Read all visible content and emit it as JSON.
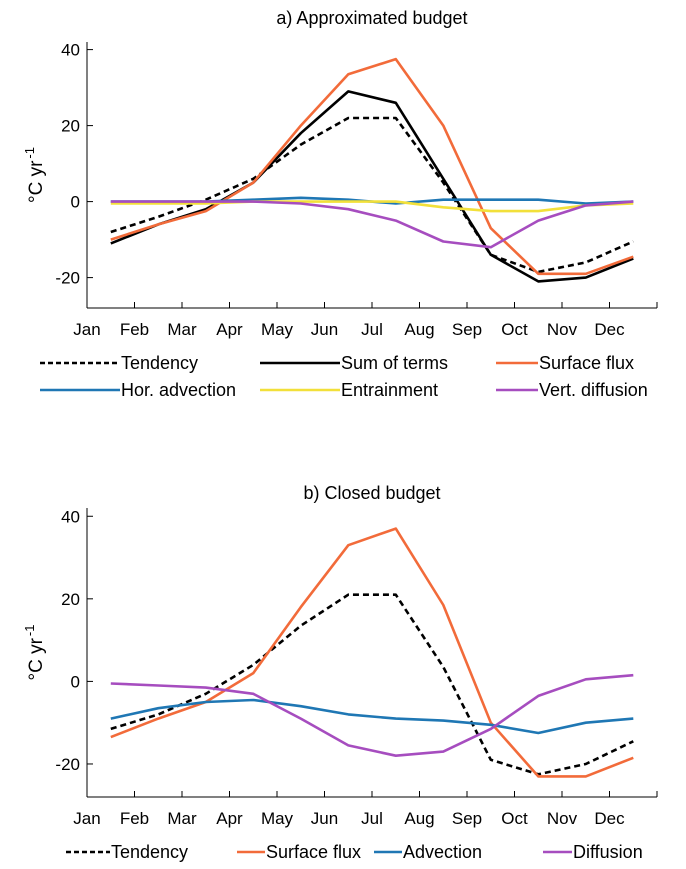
{
  "chart_data": [
    {
      "type": "line",
      "title": "a) Approximated budget",
      "ylabel_main": "°C yr",
      "ylabel_exp": "-1",
      "months": [
        "Jan",
        "Feb",
        "Mar",
        "Apr",
        "May",
        "Jun",
        "Jul",
        "Aug",
        "Sep",
        "Oct",
        "Nov",
        "Dec"
      ],
      "ylim": [
        -28,
        42
      ],
      "yticks": [
        40,
        20,
        0,
        -20
      ],
      "ytick_labels": [
        "40",
        "20",
        "0",
        "-20"
      ],
      "series": [
        {
          "name": "Tendency",
          "color": "#000000",
          "dash": true,
          "x": [
            0.5,
            1.5,
            2.5,
            3.5,
            4.5,
            5.5,
            6.5,
            7.5,
            8.5,
            9.5,
            10.5,
            11.5
          ],
          "y": [
            -8,
            -4,
            0.5,
            6,
            15,
            22,
            22,
            5,
            -14,
            -18.5,
            -16,
            -10.5
          ]
        },
        {
          "name": "Sum of terms",
          "color": "#000000",
          "dash": false,
          "x": [
            0.5,
            1.5,
            2.5,
            3.5,
            4.5,
            5.5,
            6.5,
            7.5,
            8.5,
            9.5,
            10.5,
            11.5
          ],
          "y": [
            -11,
            -6,
            -2,
            5,
            18,
            29,
            26,
            6,
            -14,
            -21,
            -20,
            -15
          ]
        },
        {
          "name": "Surface flux",
          "color": "#F26B3A",
          "dash": false,
          "x": [
            0.5,
            1.5,
            2.5,
            3.5,
            4.5,
            5.5,
            6.5,
            7.5,
            8.5,
            9.5,
            10.5,
            11.5
          ],
          "y": [
            -10,
            -6,
            -2.5,
            5,
            20,
            33.5,
            37.5,
            20,
            -7,
            -19,
            -19,
            -14.5
          ]
        },
        {
          "name": "Hor. advection",
          "color": "#1F77B4",
          "dash": false,
          "x": [
            0.5,
            1.5,
            2.5,
            3.5,
            4.5,
            5.5,
            6.5,
            7.5,
            8.5,
            9.5,
            10.5,
            11.5
          ],
          "y": [
            0,
            0,
            0,
            0.5,
            1,
            0.5,
            -0.5,
            0.5,
            0.5,
            0.5,
            -0.5,
            0
          ]
        },
        {
          "name": "Entrainment",
          "color": "#F2E03A",
          "dash": false,
          "x": [
            0.5,
            1.5,
            2.5,
            3.5,
            4.5,
            5.5,
            6.5,
            7.5,
            8.5,
            9.5,
            10.5,
            11.5
          ],
          "y": [
            -0.5,
            -0.5,
            -0.5,
            0,
            0,
            0,
            0,
            -1.5,
            -2.5,
            -2.5,
            -1,
            -0.5
          ]
        },
        {
          "name": "Vert. diffusion",
          "color": "#A64DBF",
          "dash": false,
          "x": [
            0.5,
            1.5,
            2.5,
            3.5,
            4.5,
            5.5,
            6.5,
            7.5,
            8.5,
            9.5,
            10.5,
            11.5
          ],
          "y": [
            0,
            0,
            0,
            0,
            -0.5,
            -2,
            -5,
            -10.5,
            -12,
            -5,
            -1,
            0
          ]
        }
      ],
      "legend_layout": "below, 3 columns"
    },
    {
      "type": "line",
      "title": "b) Closed budget",
      "ylabel_main": "°C yr",
      "ylabel_exp": "-1",
      "months": [
        "Jan",
        "Feb",
        "Mar",
        "Apr",
        "May",
        "Jun",
        "Jul",
        "Aug",
        "Sep",
        "Oct",
        "Nov",
        "Dec"
      ],
      "ylim": [
        -28,
        42
      ],
      "yticks": [
        40,
        20,
        0,
        -20
      ],
      "ytick_labels": [
        "40",
        "20",
        "0",
        "-20"
      ],
      "series": [
        {
          "name": "Tendency",
          "color": "#000000",
          "dash": true,
          "x": [
            0.5,
            1.5,
            2.5,
            3.5,
            4.5,
            5.5,
            6.5,
            7.5,
            8.5,
            9.5,
            10.5,
            11.5
          ],
          "y": [
            -11.5,
            -8,
            -3,
            4,
            13.5,
            21,
            21,
            3.5,
            -19,
            -22.5,
            -20,
            -14.5
          ]
        },
        {
          "name": "Surface flux",
          "color": "#F26B3A",
          "dash": false,
          "x": [
            0.5,
            1.5,
            2.5,
            3.5,
            4.5,
            5.5,
            6.5,
            7.5,
            8.5,
            9.5,
            10.5,
            11.5
          ],
          "y": [
            -13.5,
            -9,
            -5,
            2,
            18,
            33,
            37,
            18.5,
            -10,
            -23,
            -23,
            -18.5
          ]
        },
        {
          "name": "Advection",
          "color": "#1F77B4",
          "dash": false,
          "x": [
            0.5,
            1.5,
            2.5,
            3.5,
            4.5,
            5.5,
            6.5,
            7.5,
            8.5,
            9.5,
            10.5,
            11.5
          ],
          "y": [
            -9,
            -6.5,
            -5,
            -4.5,
            -6,
            -8,
            -9,
            -9.5,
            -10.5,
            -12.5,
            -10,
            -9
          ]
        },
        {
          "name": "Diffusion",
          "color": "#A64DBF",
          "dash": false,
          "x": [
            0.5,
            1.5,
            2.5,
            3.5,
            4.5,
            5.5,
            6.5,
            7.5,
            8.5,
            9.5,
            10.5,
            11.5
          ],
          "y": [
            -0.5,
            -1,
            -1.5,
            -3,
            -9,
            -15.5,
            -18,
            -17,
            -11.5,
            -3.5,
            0.5,
            1.5
          ]
        }
      ],
      "legend_layout": "below, single row"
    }
  ]
}
